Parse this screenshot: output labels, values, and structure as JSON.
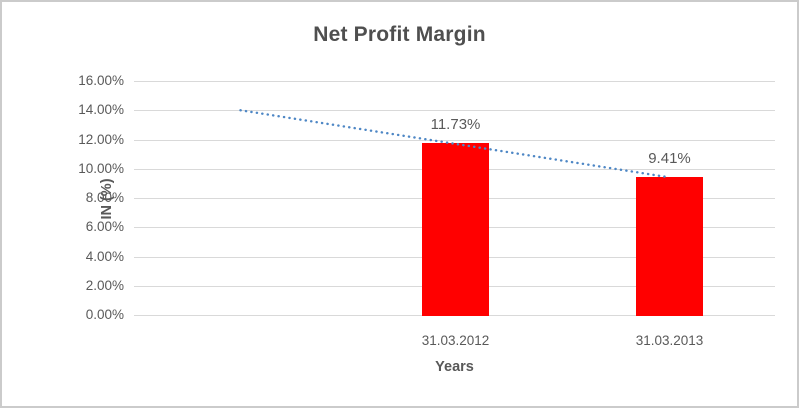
{
  "chart_data": {
    "type": "bar",
    "title": "Net Profit Margin",
    "xlabel": "Years",
    "ylabel": "IN (%)",
    "categories": [
      "31.03.2012",
      "31.03.2013"
    ],
    "values": [
      11.73,
      9.41
    ],
    "bar_labels": [
      "11.73%",
      "9.41%"
    ],
    "ylim": [
      0,
      16
    ],
    "ytick_step": 2,
    "ytick_labels": [
      "0.00%",
      "2.00%",
      "4.00%",
      "6.00%",
      "8.00%",
      "10.00%",
      "12.00%",
      "14.00%",
      "16.00%"
    ],
    "grid": true,
    "legend": "none",
    "colors": {
      "bar": "#ff0000",
      "trendline": "#4e87c5",
      "gridline": "#d9d9d9",
      "text": "#595959",
      "title": "#4f4f4f",
      "frame": "#cbcbcb",
      "background": "#ffffff"
    },
    "trendline": {
      "type": "linear",
      "style": "dotted",
      "start_value": 14.0,
      "end_value": 9.41
    }
  }
}
